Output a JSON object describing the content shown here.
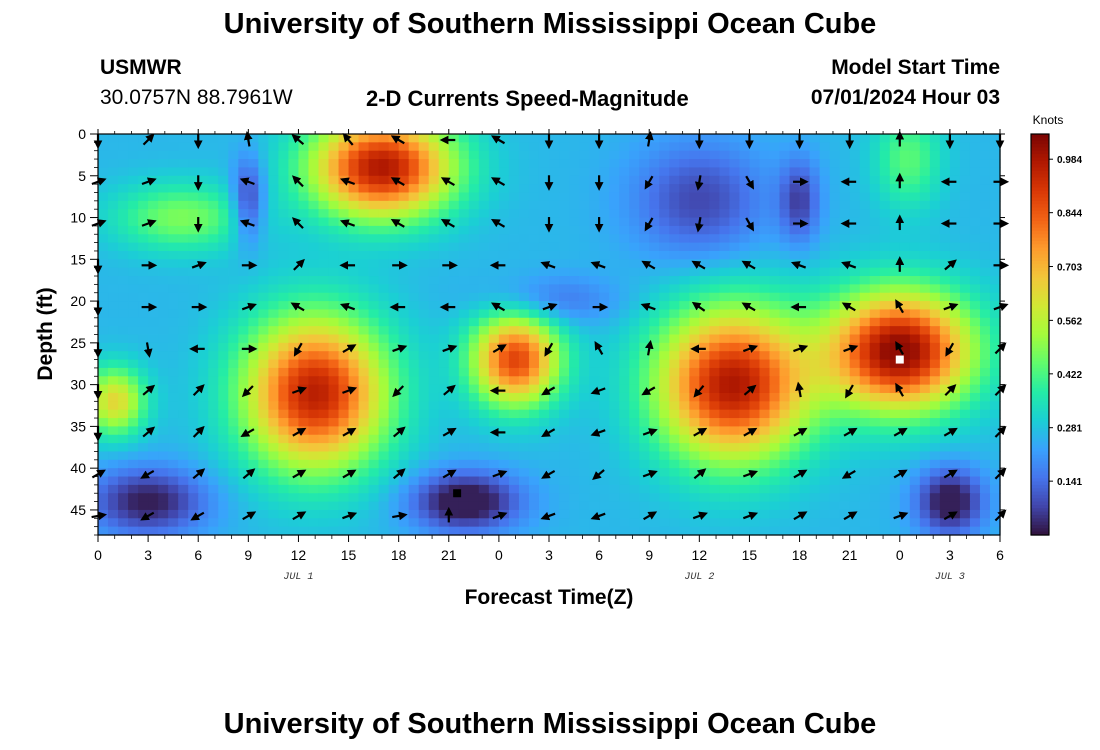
{
  "header": {
    "title": "University of Southern Mississippi Ocean Cube",
    "station_id": "USMWR",
    "station_coords": "30.0757N  88.7961W",
    "product": "2-D Currents Speed-Magnitude",
    "model_start_label": "Model Start Time",
    "model_start_value": "07/01/2024 Hour 03"
  },
  "footer": {
    "title": "University of Southern Mississippi Ocean Cube"
  },
  "chart_data": {
    "type": "heatmap",
    "title": "2-D Currents Speed-Magnitude",
    "xlabel": "Forecast Time(Z)",
    "ylabel": "Depth (ft)",
    "x_unit": "hours since Jul 1 00Z",
    "xlim": [
      0,
      54
    ],
    "ylim": [
      0,
      48
    ],
    "y_inverted": true,
    "x_ticks": [
      0,
      3,
      6,
      9,
      12,
      15,
      18,
      21,
      24,
      27,
      30,
      33,
      36,
      39,
      42,
      45,
      48,
      51,
      54
    ],
    "x_tick_labels": [
      "0",
      "3",
      "6",
      "9",
      "12",
      "15",
      "18",
      "21",
      "0",
      "3",
      "6",
      "9",
      "12",
      "15",
      "18",
      "21",
      "0",
      "3",
      "6"
    ],
    "y_ticks": [
      0,
      5,
      10,
      15,
      20,
      25,
      30,
      35,
      40,
      45
    ],
    "y_tick_labels": [
      "0",
      "5",
      "10",
      "15",
      "20",
      "25",
      "30",
      "35",
      "40",
      "45"
    ],
    "day_labels": [
      {
        "x": 12,
        "text": "JUL 1"
      },
      {
        "x": 36,
        "text": "JUL 2"
      },
      {
        "x": 51,
        "text": "JUL 3"
      }
    ],
    "colorbar": {
      "unit_label": "Knots",
      "min": 0.0,
      "max": 1.05,
      "ticks": [
        0.141,
        0.281,
        0.422,
        0.562,
        0.703,
        0.844,
        0.984
      ],
      "tick_labels": [
        "0.141",
        "0.281",
        "0.422",
        "0.562",
        "0.703",
        "0.844",
        "0.984"
      ],
      "colors": [
        "#30123b",
        "#4145ab",
        "#4675ed",
        "#39a2fc",
        "#1bcfd4",
        "#24eca6",
        "#61fc6c",
        "#a4fc3b",
        "#d1e834",
        "#f3c63a",
        "#fe9b2d",
        "#f36315",
        "#d93806",
        "#b11901",
        "#7a0403"
      ]
    },
    "speed_blobs": [
      {
        "x": 1,
        "y": 32,
        "sx": 1.8,
        "sy": 4,
        "v": 0.38
      },
      {
        "x": 17,
        "y": 4,
        "sx": 4.2,
        "sy": 6,
        "v": 0.72
      },
      {
        "x": 13,
        "y": 31,
        "sx": 4.2,
        "sy": 9,
        "v": 0.7
      },
      {
        "x": 25,
        "y": 27,
        "sx": 2.6,
        "sy": 5.5,
        "v": 0.62
      },
      {
        "x": 38,
        "y": 30,
        "sx": 4.5,
        "sy": 9,
        "v": 0.72
      },
      {
        "x": 48,
        "y": 26,
        "sx": 4.2,
        "sy": 7,
        "v": 0.78
      },
      {
        "x": 48.5,
        "y": 3,
        "sx": 2,
        "sy": 6,
        "v": 0.18
      },
      {
        "x": 5,
        "y": 10,
        "sx": 4,
        "sy": 4,
        "v": 0.22
      },
      {
        "x": 9,
        "y": 8,
        "sx": 1,
        "sy": 5,
        "v": -0.22
      },
      {
        "x": 36,
        "y": 8,
        "sx": 4,
        "sy": 7,
        "v": -0.18
      },
      {
        "x": 42,
        "y": 8,
        "sx": 1.2,
        "sy": 5,
        "v": -0.18
      },
      {
        "x": 3,
        "y": 44,
        "sx": 3.5,
        "sy": 4,
        "v": -0.25
      },
      {
        "x": 22,
        "y": 44,
        "sx": 3.2,
        "sy": 3.5,
        "v": -0.3
      },
      {
        "x": 51,
        "y": 44,
        "sx": 2,
        "sy": 4,
        "v": -0.28
      },
      {
        "x": 27,
        "y": 20,
        "sx": 4,
        "sy": 3,
        "v": -0.12
      }
    ],
    "speed_base": 0.26,
    "vector_times": [
      0,
      3,
      6,
      9,
      12,
      15,
      18,
      21,
      24,
      27,
      30,
      33,
      36,
      39,
      42,
      45,
      48,
      51,
      54
    ],
    "vector_depths": [
      0,
      5,
      10,
      15,
      20,
      25,
      30,
      35,
      40,
      45
    ],
    "vector_angles_deg": [
      [
        -90,
        45,
        -90,
        100,
        140,
        130,
        150,
        180,
        150,
        -90,
        -90,
        80,
        -90,
        -90,
        -90,
        -90,
        90,
        -90,
        -90
      ],
      [
        20,
        20,
        -90,
        160,
        135,
        160,
        150,
        150,
        150,
        -90,
        -90,
        -120,
        -100,
        -60,
        0,
        180,
        90,
        180,
        0
      ],
      [
        20,
        20,
        -90,
        160,
        135,
        160,
        150,
        150,
        150,
        -90,
        -90,
        -120,
        -100,
        -60,
        0,
        180,
        90,
        180,
        0
      ],
      [
        -90,
        0,
        20,
        0,
        45,
        180,
        0,
        0,
        180,
        160,
        160,
        150,
        150,
        150,
        160,
        160,
        90,
        40,
        0
      ],
      [
        -90,
        0,
        0,
        20,
        150,
        160,
        180,
        180,
        150,
        20,
        0,
        160,
        145,
        150,
        180,
        150,
        120,
        20,
        20
      ],
      [
        -90,
        -80,
        180,
        0,
        -120,
        30,
        20,
        20,
        30,
        -120,
        120,
        80,
        180,
        20,
        20,
        20,
        120,
        -120,
        45
      ],
      [
        -90,
        40,
        45,
        -135,
        20,
        20,
        -135,
        40,
        -180,
        -150,
        -160,
        -150,
        -130,
        40,
        100,
        -120,
        120,
        45,
        45
      ],
      [
        -90,
        40,
        45,
        -150,
        30,
        30,
        40,
        30,
        -180,
        -150,
        -160,
        20,
        30,
        30,
        30,
        30,
        30,
        30,
        45
      ],
      [
        30,
        -150,
        40,
        40,
        30,
        30,
        40,
        30,
        20,
        -150,
        -140,
        20,
        40,
        20,
        30,
        -150,
        30,
        30,
        45
      ],
      [
        10,
        -150,
        -150,
        30,
        30,
        20,
        10,
        90,
        20,
        -160,
        -160,
        30,
        20,
        20,
        30,
        30,
        20,
        30,
        45
      ]
    ],
    "markers": [
      {
        "x": 48,
        "y": 27,
        "color": "#ffffff"
      },
      {
        "x": 21.5,
        "y": 43,
        "color": "#000000"
      }
    ]
  }
}
